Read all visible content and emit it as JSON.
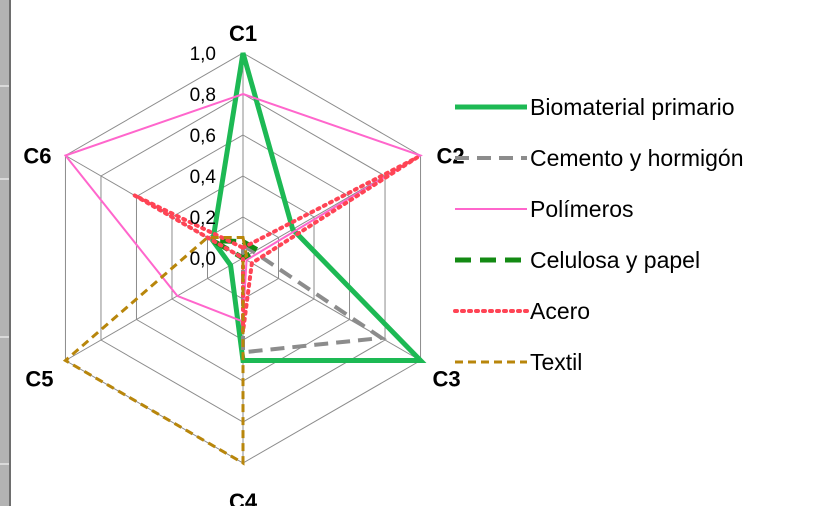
{
  "chart_data": {
    "type": "radar",
    "axes": [
      "C1",
      "C2",
      "C3",
      "C4",
      "C5",
      "C6"
    ],
    "rlim": [
      0,
      1
    ],
    "ticks": [
      "0,0",
      "0,2",
      "0,4",
      "0,6",
      "0,8",
      "1,0"
    ],
    "tick_values": [
      0,
      0.2,
      0.4,
      0.6,
      0.8,
      1.0
    ],
    "grid": true,
    "legend_position": "right",
    "series": [
      {
        "name": "Biomaterial primario",
        "values": [
          1.0,
          0.28,
          1.0,
          0.5,
          0.07,
          0.17
        ],
        "color": "#1db954",
        "dash": "solid",
        "width": 5
      },
      {
        "name": "Cemento y hormigón",
        "values": [
          0.06,
          0.06,
          0.78,
          0.46,
          0.0,
          0.0
        ],
        "color": "#8c8c8c",
        "dash": "14,8",
        "width": 4
      },
      {
        "name": "Polímeros",
        "values": [
          0.8,
          1.0,
          0.02,
          0.31,
          0.37,
          1.0
        ],
        "color": "#ff66cc",
        "dash": "solid",
        "width": 2
      },
      {
        "name": "Celulosa y papel",
        "values": [
          0.08,
          0.08,
          0.0,
          0.0,
          0.0,
          0.17
        ],
        "color": "#138a13",
        "dash": "16,9",
        "width": 5
      },
      {
        "name": "Acero",
        "values": [
          0.05,
          0.98,
          0.05,
          0.36,
          0.0,
          0.61
        ],
        "color": "#ff4455",
        "dash": "2,5",
        "width": 4
      },
      {
        "name": "Textil",
        "values": [
          0.1,
          0.02,
          0.0,
          1.0,
          1.0,
          0.2
        ],
        "color": "#b8860b",
        "dash": "8,5",
        "width": 3
      }
    ]
  }
}
